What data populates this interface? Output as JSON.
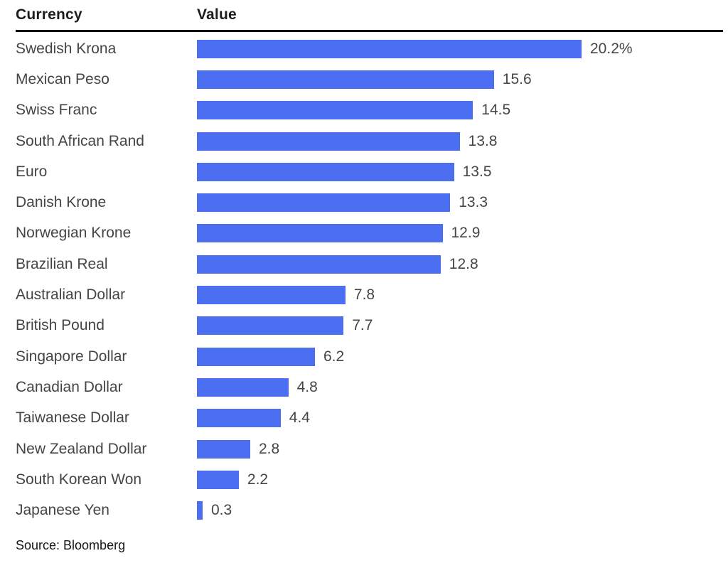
{
  "chart_data": {
    "type": "bar",
    "orientation": "horizontal",
    "headers": [
      "Currency",
      "Value"
    ],
    "categories": [
      "Swedish Krona",
      "Mexican Peso",
      "Swiss Franc",
      "South African Rand",
      "Euro",
      "Danish Krone",
      "Norwegian Krone",
      "Brazilian Real",
      "Australian Dollar",
      "British Pound",
      "Singapore Dollar",
      "Canadian Dollar",
      "Taiwanese Dollar",
      "New Zealand Dollar",
      "South Korean Won",
      "Japanese Yen"
    ],
    "values": [
      20.2,
      15.6,
      14.5,
      13.8,
      13.5,
      13.3,
      12.9,
      12.8,
      7.8,
      7.7,
      6.2,
      4.8,
      4.4,
      2.8,
      2.2,
      0.3
    ],
    "value_labels": [
      "20.2%",
      "15.6",
      "14.5",
      "13.8",
      "13.5",
      "13.3",
      "12.9",
      "12.8",
      "7.8",
      "7.7",
      "6.2",
      "4.8",
      "4.4",
      "2.8",
      "2.2",
      "0.3"
    ],
    "xlim": [
      0,
      20.2
    ],
    "grid": false,
    "legend": "none",
    "source": "Source: Bloomberg",
    "colors": {
      "bar": "#4C6EF0",
      "header_text": "#1d1d1d",
      "label_text": "#454545",
      "rule": "#000000"
    }
  }
}
